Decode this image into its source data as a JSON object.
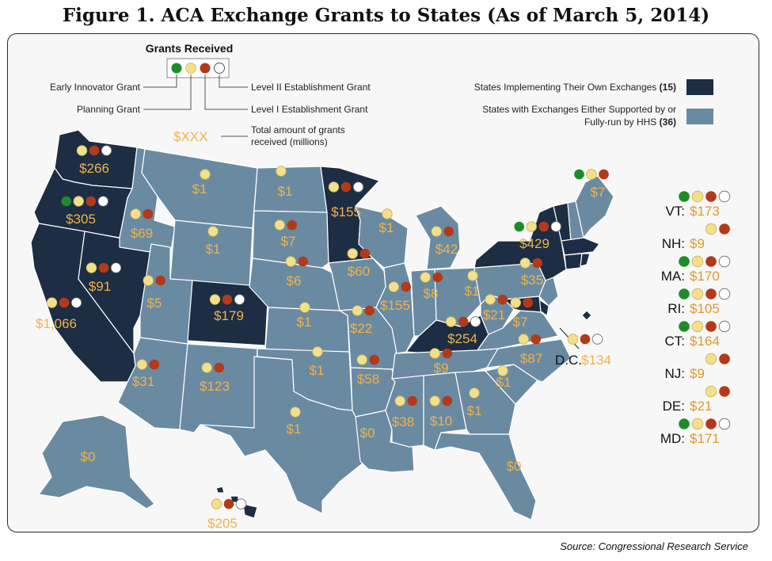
{
  "title": "Figure 1. ACA Exchange Grants to States (As of March 5, 2014)",
  "source": "Source: Congressional Research Service",
  "colors": {
    "own_exchange": "#1c2d44",
    "hhs_exchange": "#6a8aa2",
    "early_innovator": "#1e8b2a",
    "planning": "#f3e08a",
    "level1": "#b23a1a",
    "level2": "#ffffff",
    "amount": "#e9a43a"
  },
  "legend": {
    "heading": "Grants Received",
    "early_innovator": "Early Innovator Grant",
    "planning": "Planning Grant",
    "level2": "Level II Establishment Grant",
    "level1": "Level I Establishment Grant",
    "amount_sample": "$XXX",
    "amount_desc_1": "Total amount of grants",
    "amount_desc_2": "received (millions)",
    "own_label": "States Implementing Their Own Exchanges",
    "own_count": "(15)",
    "hhs_label_1": "States with Exchanges Either Supported by or",
    "hhs_label_2": "Fully-run by HHS",
    "hhs_count": "(36)"
  },
  "states": [
    {
      "id": "wa",
      "amount": "$266",
      "grants": [
        "P",
        "L1",
        "L2"
      ]
    },
    {
      "id": "or",
      "amount": "$305",
      "grants": [
        "E",
        "P",
        "L1",
        "L2"
      ]
    },
    {
      "id": "ca",
      "amount": "$1,066",
      "grants": [
        "P",
        "L1",
        "L2"
      ]
    },
    {
      "id": "nv",
      "amount": "$91",
      "grants": [
        "P",
        "L1",
        "L2"
      ]
    },
    {
      "id": "id",
      "amount": "$69",
      "grants": [
        "P",
        "L1"
      ]
    },
    {
      "id": "mt",
      "amount": "$1",
      "grants": [
        "P"
      ]
    },
    {
      "id": "wy",
      "amount": "$1",
      "grants": [
        "P"
      ]
    },
    {
      "id": "ut",
      "amount": "$5",
      "grants": [
        "P",
        "L1"
      ]
    },
    {
      "id": "co",
      "amount": "$179",
      "grants": [
        "P",
        "L1",
        "L2"
      ]
    },
    {
      "id": "az",
      "amount": "$31",
      "grants": [
        "P",
        "L1"
      ]
    },
    {
      "id": "nm",
      "amount": "$123",
      "grants": [
        "P",
        "L1"
      ]
    },
    {
      "id": "nd",
      "amount": "$1",
      "grants": [
        "P"
      ]
    },
    {
      "id": "sd",
      "amount": "$7",
      "grants": [
        "P",
        "L1"
      ]
    },
    {
      "id": "ne",
      "amount": "$6",
      "grants": [
        "P",
        "L1"
      ]
    },
    {
      "id": "ks",
      "amount": "$1",
      "grants": [
        "P"
      ]
    },
    {
      "id": "ok",
      "amount": "$1",
      "grants": [
        "P"
      ]
    },
    {
      "id": "tx",
      "amount": "$1",
      "grants": [
        "P"
      ]
    },
    {
      "id": "mn",
      "amount": "$155",
      "grants": [
        "P",
        "L1",
        "L2"
      ]
    },
    {
      "id": "ia",
      "amount": "$60",
      "grants": [
        "P",
        "L1"
      ]
    },
    {
      "id": "mo",
      "amount": "$22",
      "grants": [
        "P",
        "L1"
      ]
    },
    {
      "id": "ar",
      "amount": "$58",
      "grants": [
        "P",
        "L1"
      ]
    },
    {
      "id": "la",
      "amount": "$0",
      "grants": []
    },
    {
      "id": "wi",
      "amount": "$1",
      "grants": [
        "P"
      ]
    },
    {
      "id": "il",
      "amount": "$155",
      "grants": [
        "P",
        "L1"
      ]
    },
    {
      "id": "mi",
      "amount": "$42",
      "grants": [
        "P",
        "L1"
      ]
    },
    {
      "id": "in",
      "amount": "$8",
      "grants": [
        "P",
        "L1"
      ]
    },
    {
      "id": "oh",
      "amount": "$1",
      "grants": [
        "P"
      ]
    },
    {
      "id": "ky",
      "amount": "$254",
      "grants": [
        "P",
        "L1",
        "L2"
      ]
    },
    {
      "id": "tn",
      "amount": "$9",
      "grants": [
        "P",
        "L1"
      ]
    },
    {
      "id": "ms",
      "amount": "$38",
      "grants": [
        "P",
        "L1"
      ]
    },
    {
      "id": "al",
      "amount": "$10",
      "grants": [
        "P",
        "L1"
      ]
    },
    {
      "id": "ga",
      "amount": "$1",
      "grants": [
        "P"
      ]
    },
    {
      "id": "fl",
      "amount": "$0",
      "grants": []
    },
    {
      "id": "sc",
      "amount": "$1",
      "grants": [
        "P"
      ]
    },
    {
      "id": "nc",
      "amount": "$87",
      "grants": [
        "P",
        "L1"
      ]
    },
    {
      "id": "va",
      "amount": "$7",
      "grants": [
        "P",
        "L1"
      ]
    },
    {
      "id": "wv",
      "amount": "$21",
      "grants": [
        "P",
        "L1"
      ]
    },
    {
      "id": "pa",
      "amount": "$35",
      "grants": [
        "P",
        "L1"
      ]
    },
    {
      "id": "ny",
      "amount": "$429",
      "grants": [
        "E",
        "P",
        "L1",
        "L2"
      ]
    },
    {
      "id": "me",
      "amount": "$7",
      "grants": [
        "E",
        "P",
        "L1"
      ]
    },
    {
      "id": "ak",
      "amount": "$0",
      "grants": []
    },
    {
      "id": "hi",
      "amount": "$205",
      "grants": [
        "P",
        "L1",
        "L2"
      ]
    },
    {
      "id": "dc",
      "amount": "$134",
      "name": "D.C.",
      "grants": [
        "P",
        "L1",
        "L2"
      ]
    }
  ],
  "side_list": [
    {
      "abbr": "VT:",
      "amount": "$173",
      "grants": [
        "E",
        "P",
        "L1",
        "L2"
      ]
    },
    {
      "abbr": "NH:",
      "amount": "$9",
      "grants": [
        "P",
        "L1"
      ]
    },
    {
      "abbr": "MA:",
      "amount": "$170",
      "grants": [
        "E",
        "P",
        "L1",
        "L2"
      ]
    },
    {
      "abbr": "RI:",
      "amount": "$105",
      "grants": [
        "E",
        "P",
        "L1",
        "L2"
      ]
    },
    {
      "abbr": "CT:",
      "amount": "$164",
      "grants": [
        "E",
        "P",
        "L1",
        "L2"
      ]
    },
    {
      "abbr": "NJ:",
      "amount": "$9",
      "grants": [
        "P",
        "L1"
      ]
    },
    {
      "abbr": "DE:",
      "amount": "$21",
      "grants": [
        "P",
        "L1"
      ]
    },
    {
      "abbr": "MD:",
      "amount": "$171",
      "grants": [
        "E",
        "P",
        "L1",
        "L2"
      ]
    }
  ]
}
